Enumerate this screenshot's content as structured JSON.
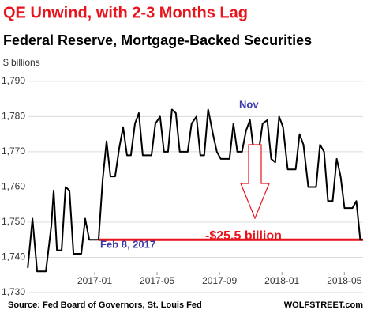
{
  "chart_data": {
    "type": "line",
    "title": "QE Unwind, with 2-3 Months Lag",
    "subtitle": "Federal Reserve, Mortgage-Backed Securities",
    "y_label": "$ billions",
    "source": "Source: Fed Board of Governors, St. Louis Fed",
    "brand": "WOLFSTREET.com",
    "annotations": {
      "nov": "Nov",
      "start": "Feb 8, 2017",
      "drop": "-$25.5 billion"
    },
    "reference_line": {
      "value": 1745,
      "color": "#e8141c",
      "from": 0.25
    },
    "grid": true,
    "xlim": [
      -4.3,
      17.2
    ],
    "xticks": [
      {
        "value": 0,
        "label": "2017-01"
      },
      {
        "value": 4,
        "label": "2017-05"
      },
      {
        "value": 8,
        "label": "2017-09"
      },
      {
        "value": 12,
        "label": "2018-01"
      },
      {
        "value": 16,
        "label": "2018-05"
      }
    ],
    "ylim": [
      1730,
      1792
    ],
    "yticks": [
      {
        "value": 1730,
        "label": "1,730"
      },
      {
        "value": 1740,
        "label": "1,740"
      },
      {
        "value": 1750,
        "label": "1,750"
      },
      {
        "value": 1760,
        "label": "1,760"
      },
      {
        "value": 1770,
        "label": "1,770"
      },
      {
        "value": 1780,
        "label": "1,780"
      },
      {
        "value": 1790,
        "label": "1,790"
      }
    ],
    "x": [
      -4.29,
      -3.99,
      -3.69,
      -3.13,
      -2.78,
      -2.63,
      -2.42,
      -2.12,
      -1.87,
      -1.62,
      -1.36,
      -0.86,
      -0.61,
      -0.35,
      -0.1,
      0.25,
      0.51,
      0.76,
      1.01,
      1.31,
      1.57,
      1.82,
      2.07,
      2.32,
      2.58,
      2.83,
      3.08,
      3.64,
      3.89,
      4.19,
      4.44,
      4.7,
      4.95,
      5.2,
      5.45,
      5.96,
      6.21,
      6.52,
      6.77,
      7.02,
      7.27,
      7.58,
      7.83,
      8.08,
      8.64,
      8.89,
      9.14,
      9.44,
      9.7,
      9.95,
      10.25,
      10.51,
      10.76,
      11.06,
      11.31,
      11.57,
      11.82,
      12.07,
      12.37,
      12.88,
      13.13,
      13.38,
      13.69,
      14.19,
      14.44,
      14.7,
      14.95,
      15.25,
      15.51,
      15.76,
      16.01,
      16.52,
      16.77,
      17.02,
      17.17
    ],
    "series": [
      {
        "color": "#000000",
        "values": [
          1737,
          1751,
          1736,
          1736,
          1749,
          1759,
          1742,
          1742,
          1760,
          1759,
          1741,
          1741,
          1751,
          1745,
          1745,
          1745,
          1762,
          1773,
          1763,
          1763,
          1771,
          1777,
          1769,
          1769,
          1778,
          1781,
          1769,
          1769,
          1778,
          1780,
          1770,
          1770,
          1782,
          1781,
          1770,
          1770,
          1778,
          1780,
          1769,
          1769,
          1782,
          1775,
          1770,
          1768,
          1768,
          1778,
          1770,
          1770,
          1776,
          1779,
          1768,
          1770,
          1778,
          1779,
          1768,
          1767,
          1780,
          1777,
          1765,
          1765,
          1775,
          1772,
          1760,
          1760,
          1772,
          1770,
          1756,
          1756,
          1768,
          1763,
          1754,
          1754,
          1756,
          1745,
          1745
        ]
      }
    ]
  }
}
